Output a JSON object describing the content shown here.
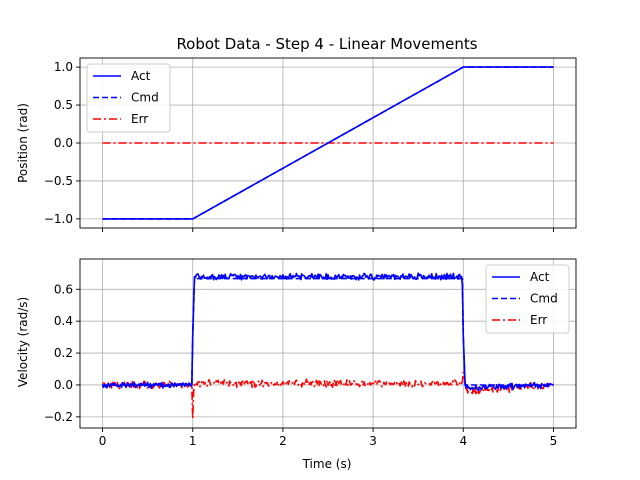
{
  "chart_data": {
    "type": "line",
    "title": "Robot Data - Step 4 - Linear Movements",
    "xlabel": "Time (s)",
    "x_ticks": [
      "0",
      "1",
      "2",
      "3",
      "4",
      "5"
    ],
    "xlim": [
      -0.25,
      5.25
    ],
    "grid": true,
    "subplots": [
      {
        "ylabel": "Position (rad)",
        "ylim": [
          -1.12,
          1.12
        ],
        "y_ticks": [
          {
            "value": 1.0,
            "label": "1.0"
          },
          {
            "value": 0.5,
            "label": "0.5"
          },
          {
            "value": 0.0,
            "label": "0.0"
          },
          {
            "value": -0.5,
            "label": "−0.5"
          },
          {
            "value": -1.0,
            "label": "−1.0"
          }
        ],
        "legend_position": "upper-left",
        "series": [
          {
            "name": "Act",
            "color": "#0000ff",
            "style": "solid",
            "x": [
              0,
              1,
              4,
              5
            ],
            "y": [
              -1.0,
              -1.0,
              1.0,
              1.0
            ]
          },
          {
            "name": "Cmd",
            "color": "#0000ff",
            "style": "dashed",
            "x": [
              0,
              1,
              4,
              5
            ],
            "y": [
              -1.0,
              -1.0,
              1.0,
              1.0
            ]
          },
          {
            "name": "Err",
            "color": "#ff0000",
            "style": "dashdot",
            "x": [
              0,
              5
            ],
            "y": [
              0.0,
              0.0
            ]
          }
        ]
      },
      {
        "ylabel": "Velocity (rad/s)",
        "ylim": [
          -0.27,
          0.79
        ],
        "y_ticks": [
          {
            "value": 0.6,
            "label": "0.6"
          },
          {
            "value": 0.4,
            "label": "0.4"
          },
          {
            "value": 0.2,
            "label": "0.2"
          },
          {
            "value": 0.0,
            "label": "0.0"
          },
          {
            "value": -0.2,
            "label": "−0.2"
          }
        ],
        "legend_position": "upper-right",
        "series": [
          {
            "name": "Act",
            "color": "#0000ff",
            "style": "solid",
            "x": [
              0,
              0.99,
              1.0,
              1.02,
              3.98,
              3.99,
              4.0,
              4.02,
              4.05,
              5
            ],
            "y": [
              0.0,
              0.0,
              0.3,
              0.68,
              0.68,
              0.62,
              0.3,
              0.0,
              -0.02,
              0.0
            ],
            "noise": 0.015
          },
          {
            "name": "Cmd",
            "color": "#0000ff",
            "style": "dashed",
            "x": [
              0,
              0.99,
              1.0,
              1.02,
              3.98,
              3.99,
              4.0,
              4.02,
              4.05,
              5
            ],
            "y": [
              0.0,
              0.0,
              0.3,
              0.667,
              0.667,
              0.667,
              0.3,
              0.0,
              0.0,
              0.0
            ]
          },
          {
            "name": "Err",
            "color": "#ff0000",
            "style": "dashdot",
            "x": [
              0,
              0.99,
              1.0,
              1.01,
              1.02,
              3.98,
              3.99,
              4.0,
              4.01,
              4.03,
              5
            ],
            "y": [
              0.0,
              0.0,
              -0.21,
              -0.05,
              0.01,
              0.01,
              0.02,
              0.08,
              0.05,
              -0.04,
              0.0
            ],
            "noise": 0.018
          }
        ]
      }
    ]
  }
}
